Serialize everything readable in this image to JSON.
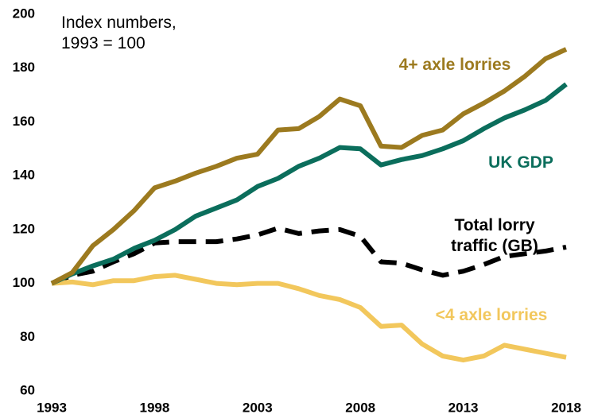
{
  "chart_data": {
    "type": "line",
    "annotation": "Index numbers, 1993 = 100",
    "x": [
      1993,
      1994,
      1995,
      1996,
      1997,
      1998,
      1999,
      2000,
      2001,
      2002,
      2003,
      2004,
      2005,
      2006,
      2007,
      2008,
      2009,
      2010,
      2011,
      2012,
      2013,
      2014,
      2015,
      2016,
      2017,
      2018
    ],
    "series": [
      {
        "name": "4+ axle lorries",
        "color": "#9c7a1f",
        "dashed": false,
        "values": [
          100,
          104,
          114,
          120,
          127,
          135.5,
          138,
          141,
          143.5,
          146.5,
          148,
          157,
          157.5,
          162,
          168.5,
          166,
          151,
          150.5,
          155,
          157,
          163,
          167,
          171.5,
          177,
          183.5,
          187
        ]
      },
      {
        "name": "UK GDP",
        "color": "#0b6e5c",
        "dashed": false,
        "values": [
          100,
          103.5,
          106.5,
          109,
          113,
          116,
          120,
          125,
          128,
          131,
          136,
          139,
          143.5,
          146.5,
          150.5,
          150,
          144,
          146,
          147.5,
          150,
          153,
          157.5,
          161.5,
          164.5,
          168,
          174
        ]
      },
      {
        "name": "Total lorry traffic (GB)",
        "color": "#000000",
        "dashed": true,
        "values": [
          100,
          103,
          104.5,
          108,
          111,
          115,
          115.5,
          115.5,
          115.5,
          116.5,
          118,
          120.5,
          118.5,
          119.5,
          120,
          117.5,
          108,
          107.5,
          105,
          103,
          104.5,
          107,
          110,
          111,
          112,
          113.5
        ]
      },
      {
        "name": "<4 axle lorries",
        "color": "#f2c75c",
        "dashed": false,
        "values": [
          100,
          100.5,
          99.5,
          101,
          101,
          102.5,
          103,
          101.5,
          100,
          99.5,
          100,
          100,
          98,
          95.5,
          94,
          91,
          84,
          84.5,
          77.5,
          73,
          71.5,
          73,
          77,
          75.5,
          74,
          72.5
        ]
      }
    ],
    "xlim": [
      1993,
      2018
    ],
    "xticks": [
      1993,
      1998,
      2003,
      2008,
      2013,
      2018
    ],
    "ylim": [
      60,
      200
    ],
    "yticks": [
      60,
      80,
      100,
      120,
      140,
      160,
      180,
      200
    ]
  }
}
